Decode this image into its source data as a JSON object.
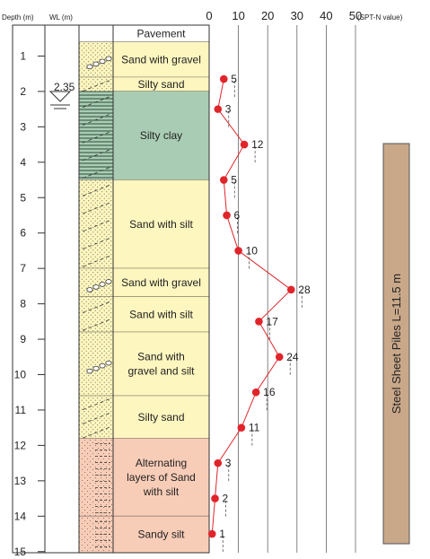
{
  "header": {
    "depth_label": "Depth (m)",
    "wl_label": "WL (m)",
    "spt_axis_label": "(SPT-N value)",
    "spt_ticks": [
      "0",
      "10",
      "20",
      "30",
      "40",
      "50"
    ]
  },
  "depth_ticks": [
    "1",
    "2",
    "3",
    "4",
    "5",
    "6",
    "7",
    "8",
    "9",
    "10",
    "11",
    "12",
    "13",
    "14",
    "15"
  ],
  "water_level": {
    "label": "2.35"
  },
  "layers": [
    {
      "name": [
        "Pavement"
      ],
      "top": 0.0,
      "bottom": 0.6,
      "color": "#ffffff",
      "pattern": "none"
    },
    {
      "name": [
        "Sand with gravel"
      ],
      "top": 0.6,
      "bottom": 1.6,
      "color": "#fdf6bf",
      "pattern": "gravel"
    },
    {
      "name": [
        "Silty sand"
      ],
      "top": 1.6,
      "bottom": 2.0,
      "color": "#fdf6bf",
      "pattern": "silt"
    },
    {
      "name": [
        "Silty clay"
      ],
      "top": 2.0,
      "bottom": 4.5,
      "color": "#a9cdb4",
      "pattern": "clay"
    },
    {
      "name": [
        "Sand with silt"
      ],
      "top": 4.5,
      "bottom": 7.0,
      "color": "#fdf6bf",
      "pattern": "sandsilt"
    },
    {
      "name": [
        "Sand with gravel"
      ],
      "top": 7.0,
      "bottom": 7.8,
      "color": "#fdf6bf",
      "pattern": "gravel"
    },
    {
      "name": [
        "Sand with silt"
      ],
      "top": 7.8,
      "bottom": 8.8,
      "color": "#fdf6bf",
      "pattern": "sandsilt"
    },
    {
      "name": [
        "Sand with",
        "gravel and silt"
      ],
      "top": 8.8,
      "bottom": 10.6,
      "color": "#fdf6bf",
      "pattern": "gravel"
    },
    {
      "name": [
        "Silty sand"
      ],
      "top": 10.6,
      "bottom": 11.8,
      "color": "#fdf6bf",
      "pattern": "silt"
    },
    {
      "name": [
        "Alternating",
        "layers of Sand",
        "with silt"
      ],
      "top": 11.8,
      "bottom": 14.0,
      "color": "#f8cdb8",
      "pattern": "alt"
    },
    {
      "name": [
        "Sandy silt"
      ],
      "top": 14.0,
      "bottom": 15.4,
      "color": "#f8cdb8",
      "pattern": "sandysilt"
    }
  ],
  "spt": [
    {
      "depth": 1.65,
      "n": 5,
      "label": "5"
    },
    {
      "depth": 2.5,
      "n": 3,
      "label": "3"
    },
    {
      "depth": 3.5,
      "n": 12,
      "label": "12"
    },
    {
      "depth": 4.5,
      "n": 5,
      "label": "5"
    },
    {
      "depth": 5.5,
      "n": 6,
      "label": "6"
    },
    {
      "depth": 6.5,
      "n": 10,
      "label": "10"
    },
    {
      "depth": 7.6,
      "n": 28,
      "label": "28"
    },
    {
      "depth": 8.5,
      "n": 17,
      "label": "17"
    },
    {
      "depth": 9.5,
      "n": 24,
      "label": "24"
    },
    {
      "depth": 10.5,
      "n": 16,
      "label": "16"
    },
    {
      "depth": 11.5,
      "n": 11,
      "label": "11"
    },
    {
      "depth": 12.5,
      "n": 3,
      "label": "3"
    },
    {
      "depth": 13.5,
      "n": 2,
      "label": "2"
    },
    {
      "depth": 14.5,
      "n": 1,
      "label": "1"
    }
  ],
  "pile": {
    "label": "Steel Sheet Piles L=11.5 m",
    "color": "#c9a88a"
  },
  "colors": {
    "spt_point": "#e0252a",
    "spt_line": "#e0252a",
    "dash_line": "#555555"
  }
}
